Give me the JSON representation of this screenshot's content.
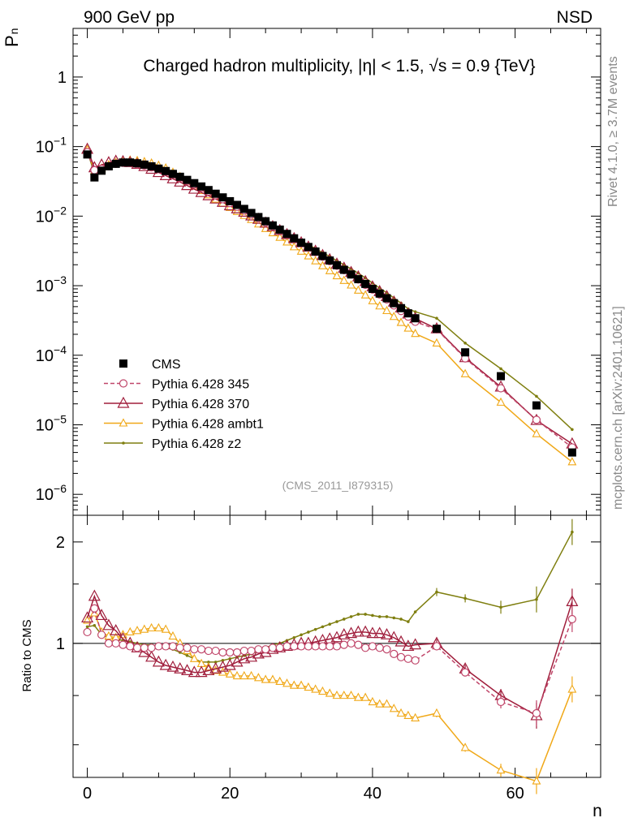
{
  "header": {
    "left": "900 GeV pp",
    "right": "NSD"
  },
  "side_labels": {
    "rivet": "Rivet 4.1.0, ≥ 3.7M events",
    "mcplots": "mcplots.cern.ch [arXiv:2401.10621]"
  },
  "colors": {
    "CMS": "#000000",
    "p345": "#c0466a",
    "p370": "#a01e3c",
    "ambt1": "#f0a818",
    "z2": "#7f7f10",
    "axis": "#000000",
    "analysis": "#999999"
  },
  "chart_data": [
    {
      "type": "line",
      "title": "Charged hadron multiplicity, |η| < 1.5, √s = 0.9 {TeV}",
      "analysis_id": "(CMS_2011_I879315)",
      "ylabel": "P",
      "ylabel_sub": "n",
      "xlim": [
        -2,
        72
      ],
      "ylim": [
        5e-07,
        5
      ],
      "yscale": "log",
      "yticks": [
        {
          "v": 1e-06,
          "m": "10",
          "e": "−6"
        },
        {
          "v": 1e-05,
          "m": "10",
          "e": "−5"
        },
        {
          "v": 0.0001,
          "m": "10",
          "e": "−4"
        },
        {
          "v": 0.001,
          "m": "10",
          "e": "−3"
        },
        {
          "v": 0.01,
          "m": "10",
          "e": "−2"
        },
        {
          "v": 0.1,
          "m": "10",
          "e": "−1"
        },
        {
          "v": 1,
          "m": "1",
          "e": ""
        }
      ],
      "legend": [
        {
          "key": "CMS",
          "label": "CMS"
        },
        {
          "key": "p345",
          "label": "Pythia 6.428 345"
        },
        {
          "key": "p370",
          "label": "Pythia 6.428 370"
        },
        {
          "key": "ambt1",
          "label": "Pythia 6.428 ambt1"
        },
        {
          "key": "z2",
          "label": "Pythia 6.428 z2"
        }
      ],
      "x": [
        0,
        1,
        2,
        3,
        4,
        5,
        6,
        7,
        8,
        9,
        10,
        11,
        12,
        13,
        14,
        15,
        16,
        17,
        18,
        19,
        20,
        21,
        22,
        23,
        24,
        25,
        26,
        27,
        28,
        29,
        30,
        31,
        32,
        33,
        34,
        35,
        36,
        37,
        38,
        39,
        40,
        41,
        42,
        43,
        44,
        45,
        46,
        49,
        53,
        58,
        63,
        68
      ],
      "cms": [
        0.077,
        0.036,
        0.045,
        0.052,
        0.0565,
        0.059,
        0.059,
        0.0575,
        0.055,
        0.052,
        0.0482,
        0.0445,
        0.0405,
        0.0368,
        0.0332,
        0.0298,
        0.0267,
        0.0237,
        0.021,
        0.0186,
        0.0164,
        0.0145,
        0.0127,
        0.0111,
        0.0097,
        0.00845,
        0.00735,
        0.0064,
        0.00555,
        0.0048,
        0.00415,
        0.0036,
        0.0031,
        0.00267,
        0.0023,
        0.00197,
        0.00169,
        0.00145,
        0.00124,
        0.00106,
        0.0009,
        0.00077,
        0.00066,
        0.00056,
        0.000475,
        0.0004,
        0.00034,
        0.00024,
        0.00011,
        5e-05,
        1.9e-05,
        4e-06
      ],
      "series": [
        {
          "key": "CMS",
          "name": "CMS",
          "style": "square"
        },
        {
          "key": "p345",
          "name": "Pythia 6.428 345",
          "style": "circle",
          "dashed": true
        },
        {
          "key": "p370",
          "name": "Pythia 6.428 370",
          "style": "triangle"
        },
        {
          "key": "ambt1",
          "name": "Pythia 6.428 ambt1",
          "style": "triangle-small"
        },
        {
          "key": "z2",
          "name": "Pythia 6.428 z2",
          "style": "dot"
        }
      ]
    },
    {
      "type": "line",
      "title": "",
      "ylabel": "Ratio to CMS",
      "xlabel": "n",
      "xlim": [
        -2,
        72
      ],
      "ylim": [
        0.4,
        2.4
      ],
      "yscale": "log",
      "reference": 1,
      "yticks": [
        {
          "v": 1,
          "label": "1"
        },
        {
          "v": 2,
          "label": "2"
        }
      ],
      "yminor": [
        0.5,
        0.7,
        1.5
      ],
      "xticks": [
        0,
        20,
        40,
        60
      ],
      "ratios": {
        "p345": [
          1.08,
          1.27,
          1.06,
          1.0,
          1.0,
          0.99,
          0.98,
          0.97,
          0.97,
          0.97,
          0.98,
          0.98,
          0.98,
          0.97,
          0.97,
          0.96,
          0.96,
          0.95,
          0.95,
          0.94,
          0.94,
          0.94,
          0.95,
          0.95,
          0.96,
          0.96,
          0.97,
          0.97,
          0.98,
          0.98,
          0.98,
          0.98,
          0.98,
          0.98,
          0.98,
          0.98,
          0.99,
          1.0,
          0.99,
          0.97,
          0.98,
          0.97,
          0.96,
          0.93,
          0.91,
          0.9,
          0.89,
          0.98,
          0.82,
          0.67,
          0.62,
          1.18
        ],
        "p370": [
          1.19,
          1.38,
          1.21,
          1.13,
          1.09,
          1.03,
          1.0,
          0.97,
          0.94,
          0.91,
          0.88,
          0.86,
          0.85,
          0.84,
          0.83,
          0.82,
          0.82,
          0.83,
          0.84,
          0.85,
          0.86,
          0.88,
          0.9,
          0.91,
          0.93,
          0.94,
          0.96,
          0.97,
          0.98,
          0.99,
          1.0,
          1.0,
          1.01,
          1.02,
          1.03,
          1.04,
          1.06,
          1.07,
          1.08,
          1.08,
          1.07,
          1.07,
          1.06,
          1.04,
          1.01,
          0.98,
          0.99,
          1.0,
          0.84,
          0.7,
          0.61,
          1.33
        ],
        "ambt1": [
          1.17,
          1.23,
          1.08,
          1.05,
          1.04,
          1.06,
          1.08,
          1.09,
          1.1,
          1.11,
          1.11,
          1.1,
          1.05,
          1.0,
          0.95,
          0.9,
          0.87,
          0.85,
          0.83,
          0.82,
          0.81,
          0.8,
          0.8,
          0.8,
          0.79,
          0.78,
          0.78,
          0.77,
          0.76,
          0.75,
          0.75,
          0.74,
          0.73,
          0.72,
          0.71,
          0.7,
          0.7,
          0.7,
          0.69,
          0.69,
          0.67,
          0.66,
          0.66,
          0.64,
          0.62,
          0.61,
          0.6,
          0.62,
          0.49,
          0.42,
          0.39,
          0.73
        ],
        "z2": [
          1.12,
          1.13,
          1.06,
          1.04,
          1.03,
          1.02,
          1.01,
          1.0,
          0.99,
          0.99,
          0.98,
          0.97,
          0.96,
          0.94,
          0.92,
          0.9,
          0.88,
          0.88,
          0.88,
          0.89,
          0.9,
          0.91,
          0.92,
          0.93,
          0.95,
          0.97,
          0.99,
          1.0,
          1.02,
          1.04,
          1.06,
          1.08,
          1.1,
          1.12,
          1.14,
          1.16,
          1.18,
          1.2,
          1.22,
          1.22,
          1.21,
          1.2,
          1.2,
          1.19,
          1.18,
          1.16,
          1.24,
          1.42,
          1.36,
          1.28,
          1.35,
          2.14
        ]
      }
    }
  ]
}
